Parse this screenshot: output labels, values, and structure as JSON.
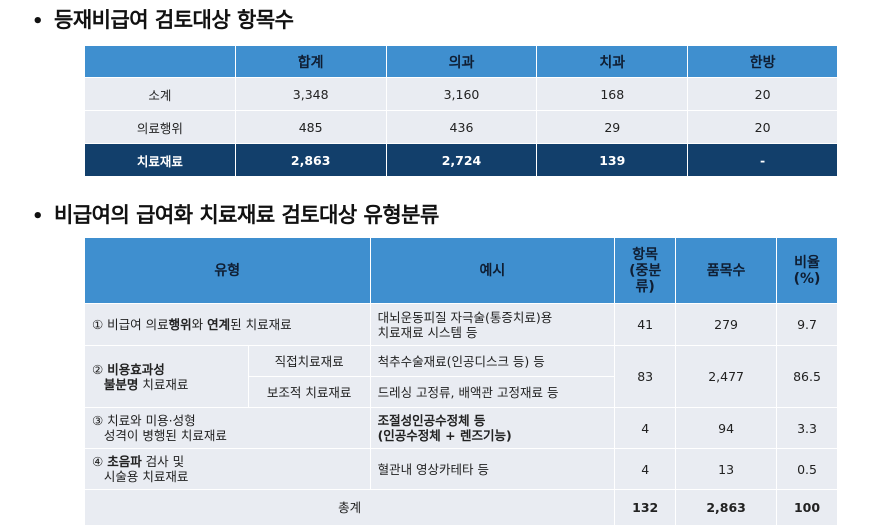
{
  "section1": {
    "bullet": "•",
    "title": "등재비급여 검토대상 항목수",
    "headers": [
      "",
      "합계",
      "의과",
      "치과",
      "한방"
    ],
    "rows": [
      {
        "label": "소계",
        "total": "3,348",
        "medical": "3,160",
        "dental": "168",
        "oriental": "20"
      },
      {
        "label": "의료행위",
        "total": "485",
        "medical": "436",
        "dental": "29",
        "oriental": "20"
      },
      {
        "label": "치료재료",
        "total": "2,863",
        "medical": "2,724",
        "dental": "139",
        "oriental": "-"
      }
    ]
  },
  "section2": {
    "bullet": "•",
    "title": "비급여의 급여화 치료재료 검토대상 유형분류",
    "headers": {
      "type": "유형",
      "example": "예시",
      "items_l1": "항목",
      "items_l2": "(중분",
      "items_l3": "류)",
      "products": "품목수",
      "ratio_l1": "비율",
      "ratio_l2": "(%)"
    },
    "rows": {
      "r1": {
        "pre": "① 비급여 의료",
        "bold1": "행위",
        "mid": "와 ",
        "bold2": "연계",
        "post": "된 치료재료",
        "example_l1": "대뇌운동피질 자극술(통증치료)용",
        "example_l2": "치료재료 시스템 등",
        "items": "41",
        "products": "279",
        "ratio": "9.7"
      },
      "r2": {
        "num": "② ",
        "bold_l1": "비용효과성",
        "bold_l2": "불분명",
        "post_l2": " 치료재료",
        "sub1": "직접치료재료",
        "example1": "척추수술재료(인공디스크 등) 등",
        "sub2": "보조적 치료재료",
        "example2": "드레싱 고정류, 배액관 고정재료 등",
        "items": "83",
        "products": "2,477",
        "ratio": "86.5"
      },
      "r3": {
        "type_l1": "③ 치료와 미용·성형",
        "type_l2": "성격이 병행된 치료재료",
        "example_l1": "조절성인공수정체 등",
        "example_l2": "(인공수정체 + 렌즈기능)",
        "items": "4",
        "products": "94",
        "ratio": "3.3"
      },
      "r4": {
        "num": "④ ",
        "bold": "초음파",
        "post_l1": " 검사 및",
        "type_l2": "시술용 치료재료",
        "example": "혈관내 영상카테타 등",
        "items": "4",
        "products": "13",
        "ratio": "0.5"
      },
      "total": {
        "label": "총계",
        "items": "132",
        "products": "2,863",
        "ratio": "100"
      }
    }
  },
  "colors": {
    "header_blue": "#3f8fcf",
    "total_navy": "#123f6b",
    "cell_gray": "#e9ecf2"
  }
}
